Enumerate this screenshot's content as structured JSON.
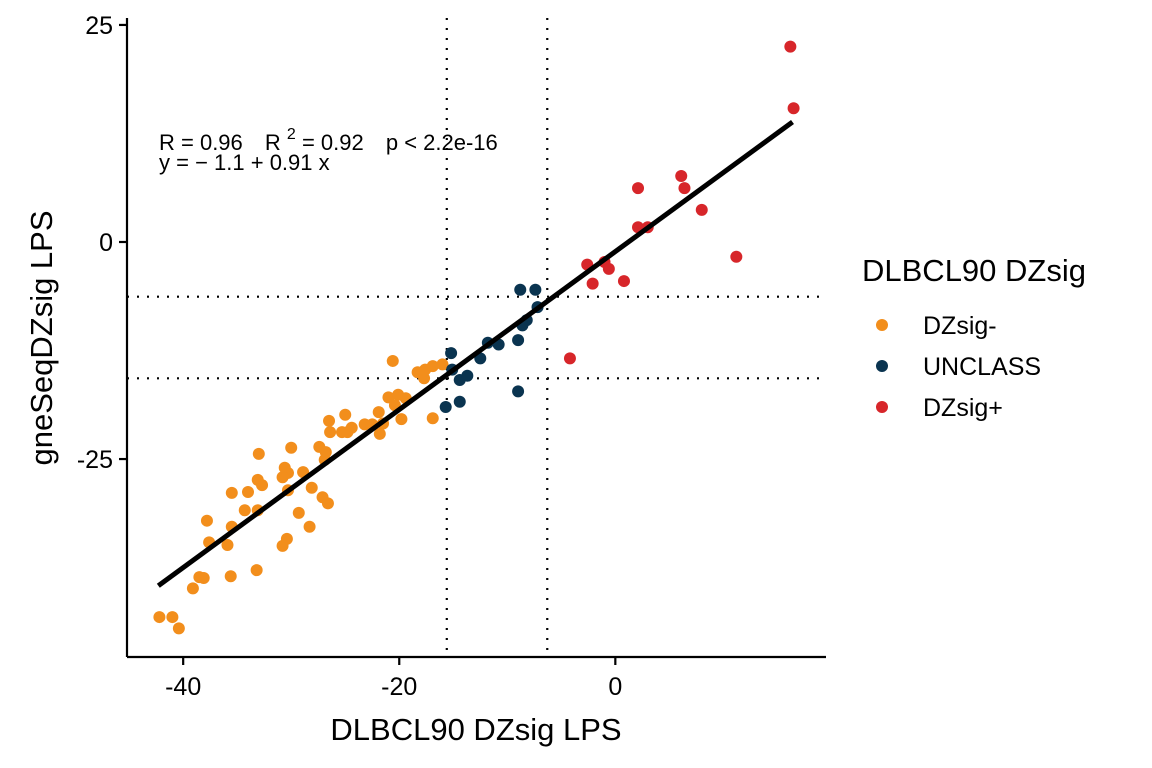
{
  "chart_data": {
    "type": "scatter",
    "title": "",
    "xlabel": "DLBCL90 DZsig LPS",
    "ylabel": "gneSeqDZsig LPS",
    "xlim": [
      -45.2,
      19.5
    ],
    "ylim": [
      -47.8,
      25.8
    ],
    "x_ticks": [
      -40,
      -20,
      0
    ],
    "x_tick_labels": [
      "-40",
      "-20",
      "0"
    ],
    "y_ticks": [
      25,
      0,
      -25
    ],
    "y_tick_labels": [
      "25",
      "0",
      "-25"
    ],
    "grid": false,
    "reference_lines": {
      "vertical": [
        -15.6,
        -6.3
      ],
      "horizontal": [
        -6.3,
        -15.7
      ],
      "style": "dotted"
    },
    "regression": {
      "intercept": -1.1,
      "slope": 0.91,
      "x_range": [
        -42.3,
        16.4
      ]
    },
    "annotation": {
      "line1_R": "R = 0.96",
      "line1_R2_prefix": "R",
      "line1_R2_sup": "2",
      "line1_R2_value": " = 0.92",
      "line1_p": "p < 2.2e-16",
      "line2": "y = − 1.1 + 0.91 x"
    },
    "legend": {
      "title": "DLBCL90 DZsig",
      "position": "right"
    },
    "series": [
      {
        "name": "DZsig-",
        "color": "#F28E1C",
        "points": [
          [
            -20.6,
            -13.7
          ],
          [
            -18.3,
            -15.0
          ],
          [
            -17.6,
            -14.7
          ],
          [
            -16.9,
            -14.3
          ],
          [
            -16.0,
            -14.1
          ],
          [
            -17.7,
            -15.7
          ],
          [
            -21.0,
            -17.9
          ],
          [
            -20.1,
            -17.6
          ],
          [
            -19.4,
            -18.0
          ],
          [
            -20.4,
            -18.8
          ],
          [
            -21.9,
            -19.6
          ],
          [
            -21.5,
            -20.9
          ],
          [
            -21.8,
            -22.1
          ],
          [
            -23.2,
            -21.0
          ],
          [
            -24.4,
            -21.4
          ],
          [
            -19.8,
            -20.4
          ],
          [
            -16.9,
            -20.3
          ],
          [
            -22.5,
            -21.0
          ],
          [
            -26.5,
            -20.6
          ],
          [
            -25.0,
            -19.9
          ],
          [
            -25.3,
            -21.9
          ],
          [
            -26.4,
            -21.9
          ],
          [
            -24.8,
            -21.9
          ],
          [
            -33.0,
            -24.4
          ],
          [
            -30.0,
            -23.7
          ],
          [
            -27.4,
            -23.6
          ],
          [
            -26.8,
            -24.2
          ],
          [
            -26.9,
            -25.1
          ],
          [
            -30.6,
            -26.0
          ],
          [
            -30.3,
            -26.6
          ],
          [
            -30.8,
            -27.1
          ],
          [
            -28.9,
            -26.5
          ],
          [
            -32.7,
            -28.0
          ],
          [
            -33.1,
            -27.4
          ],
          [
            -35.5,
            -28.9
          ],
          [
            -34.0,
            -28.8
          ],
          [
            -30.3,
            -28.6
          ],
          [
            -28.1,
            -28.3
          ],
          [
            -27.1,
            -29.4
          ],
          [
            -26.6,
            -30.1
          ],
          [
            -34.3,
            -30.9
          ],
          [
            -33.1,
            -30.9
          ],
          [
            -35.5,
            -32.8
          ],
          [
            -29.3,
            -31.2
          ],
          [
            -28.3,
            -32.8
          ],
          [
            -30.4,
            -34.2
          ],
          [
            -30.8,
            -35.0
          ],
          [
            -35.9,
            -34.9
          ],
          [
            -37.8,
            -32.1
          ],
          [
            -37.6,
            -34.6
          ],
          [
            -38.5,
            -38.6
          ],
          [
            -38.1,
            -38.7
          ],
          [
            -39.1,
            -39.9
          ],
          [
            -35.6,
            -38.5
          ],
          [
            -33.2,
            -37.8
          ],
          [
            -42.2,
            -43.2
          ],
          [
            -41.0,
            -43.2
          ],
          [
            -40.4,
            -44.5
          ]
        ]
      },
      {
        "name": "UNCLASS",
        "color": "#0A3450",
        "points": [
          [
            -8.8,
            -5.5
          ],
          [
            -7.4,
            -5.5
          ],
          [
            -7.2,
            -7.5
          ],
          [
            -8.2,
            -9.0
          ],
          [
            -8.6,
            -9.6
          ],
          [
            -9.0,
            -11.3
          ],
          [
            -10.8,
            -11.8
          ],
          [
            -11.8,
            -11.6
          ],
          [
            -12.5,
            -13.4
          ],
          [
            -15.2,
            -12.8
          ],
          [
            -15.1,
            -14.7
          ],
          [
            -14.4,
            -15.9
          ],
          [
            -13.7,
            -15.4
          ],
          [
            -15.7,
            -19.0
          ],
          [
            -14.4,
            -18.4
          ],
          [
            -9.0,
            -17.2
          ]
        ]
      },
      {
        "name": "DZsig+",
        "color": "#D7262A",
        "points": [
          [
            16.2,
            22.5
          ],
          [
            16.5,
            15.4
          ],
          [
            6.1,
            7.6
          ],
          [
            6.4,
            6.2
          ],
          [
            2.1,
            6.2
          ],
          [
            8.0,
            3.7
          ],
          [
            2.1,
            1.7
          ],
          [
            3.0,
            1.7
          ],
          [
            11.2,
            -1.7
          ],
          [
            -2.6,
            -2.6
          ],
          [
            -1.0,
            -2.3
          ],
          [
            -0.6,
            -3.1
          ],
          [
            -2.1,
            -4.8
          ],
          [
            0.8,
            -4.5
          ],
          [
            -4.2,
            -13.4
          ]
        ]
      }
    ]
  }
}
